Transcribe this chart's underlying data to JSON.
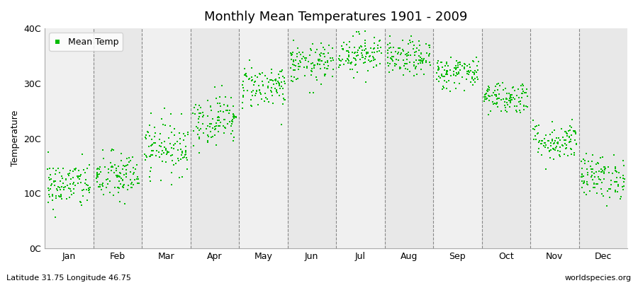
{
  "title": "Monthly Mean Temperatures 1901 - 2009",
  "ylabel": "Temperature",
  "xlabel": "",
  "footer_left": "Latitude 31.75 Longitude 46.75",
  "footer_right": "worldspecies.org",
  "legend_label": "Mean Temp",
  "dot_color": "#00bb00",
  "dot_size": 3,
  "bg_color": "#f0f0f0",
  "alt_bg_color": "#e8e8e8",
  "ylim": [
    0,
    40
  ],
  "yticks": [
    0,
    10,
    20,
    30,
    40
  ],
  "ytick_labels": [
    "0C",
    "10C",
    "20C",
    "30C",
    "40C"
  ],
  "months": [
    "Jan",
    "Feb",
    "Mar",
    "Apr",
    "May",
    "Jun",
    "Jul",
    "Aug",
    "Sep",
    "Oct",
    "Nov",
    "Dec"
  ],
  "month_means": [
    11.5,
    13.0,
    18.5,
    23.5,
    29.5,
    33.5,
    35.5,
    34.5,
    32.0,
    27.5,
    19.5,
    13.0
  ],
  "month_stds": [
    2.2,
    2.3,
    2.5,
    2.3,
    2.0,
    1.8,
    1.8,
    1.6,
    1.5,
    1.5,
    1.8,
    2.0
  ],
  "n_years": 109,
  "random_seed": 42,
  "title_fontsize": 13,
  "axis_fontsize": 9,
  "tick_fontsize": 9,
  "footer_fontsize": 8
}
